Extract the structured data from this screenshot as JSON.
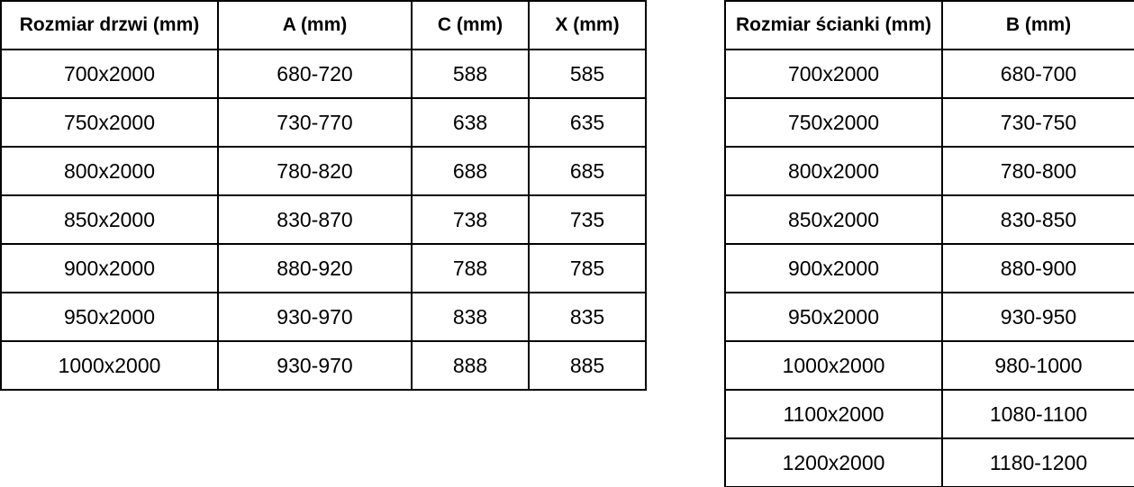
{
  "door_table": {
    "headers": [
      "Rozmiar drzwi (mm)",
      "A (mm)",
      "C (mm)",
      "X (mm)"
    ],
    "rows": [
      [
        "700x2000",
        "680-720",
        "588",
        "585"
      ],
      [
        "750x2000",
        "730-770",
        "638",
        "635"
      ],
      [
        "800x2000",
        "780-820",
        "688",
        "685"
      ],
      [
        "850x2000",
        "830-870",
        "738",
        "735"
      ],
      [
        "900x2000",
        "880-920",
        "788",
        "785"
      ],
      [
        "950x2000",
        "930-970",
        "838",
        "835"
      ],
      [
        "1000x2000",
        "930-970",
        "888",
        "885"
      ]
    ]
  },
  "wall_table": {
    "headers": [
      "Rozmiar ścianki (mm)",
      "B (mm)"
    ],
    "rows": [
      [
        "700x2000",
        "680-700"
      ],
      [
        "750x2000",
        "730-750"
      ],
      [
        "800x2000",
        "780-800"
      ],
      [
        "850x2000",
        "830-850"
      ],
      [
        "900x2000",
        "880-900"
      ],
      [
        "950x2000",
        "930-950"
      ],
      [
        "1000x2000",
        "980-1000"
      ],
      [
        "1100x2000",
        "1080-1100"
      ],
      [
        "1200x2000",
        "1180-1200"
      ]
    ]
  },
  "colors": {
    "border": "#000000",
    "text": "#000000",
    "background": "#ffffff"
  }
}
